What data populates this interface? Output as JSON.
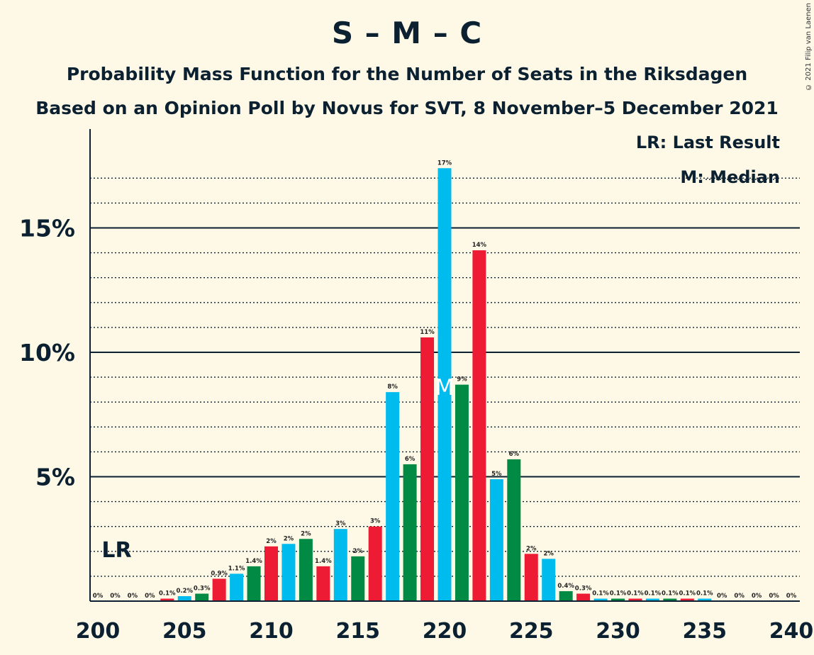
{
  "title": "S – M – C",
  "subtitle": "Probability Mass Function for the Number of Seats in the Riksdagen",
  "subtitle2": "Based on an Opinion Poll by Novus for SVT, 8 November–5 December 2021",
  "copyright": "© 2021 Filip van Laenen",
  "legend": {
    "last_result": "LR: Last Result",
    "median": "M: Median"
  },
  "markers": {
    "last_result_label": "LR",
    "last_result_seat": 201,
    "median_label": "M",
    "median_seat": 220
  },
  "colors": {
    "background": "#FEF9E6",
    "blue": "#00BBEE",
    "green": "#008A44",
    "red": "#ED1B34",
    "axis": "#0B2030"
  },
  "chart_data": {
    "type": "bar",
    "x": [
      200,
      201,
      202,
      203,
      204,
      205,
      206,
      207,
      208,
      209,
      210,
      211,
      212,
      213,
      214,
      215,
      216,
      217,
      218,
      219,
      220,
      221,
      222,
      223,
      224,
      225,
      226,
      227,
      228,
      229,
      230,
      231,
      232,
      233,
      234,
      235,
      236,
      237,
      238,
      239,
      240
    ],
    "values": [
      0,
      0,
      0,
      0,
      0.1,
      0.2,
      0.3,
      0.9,
      1.1,
      1.4,
      2.2,
      2.3,
      2.5,
      1.4,
      2.9,
      1.8,
      3.0,
      8.4,
      5.5,
      10.6,
      17.4,
      8.7,
      14.1,
      4.9,
      5.7,
      1.9,
      1.7,
      0.4,
      0.3,
      0.1,
      0.1,
      0.1,
      0.1,
      0.1,
      0.1,
      0.1,
      0,
      0,
      0,
      0,
      0
    ],
    "labels": [
      "0%",
      "0%",
      "0%",
      "0%",
      "0.1%",
      "0.2%",
      "0.3%",
      "0.9%",
      "1.1%",
      "1.4%",
      "2%",
      "2%",
      "2%",
      "1.4%",
      "3%",
      "2%",
      "3%",
      "8%",
      "6%",
      "11%",
      "17%",
      "9%",
      "14%",
      "5%",
      "6%",
      "2%",
      "2%",
      "0.4%",
      "0.3%",
      "0.1%",
      "0.1%",
      "0.1%",
      "0.1%",
      "0.1%",
      "0.1%",
      "0.1%",
      "0%",
      "0%",
      "0%",
      "0%",
      "0%"
    ],
    "bar_colors": [
      "blue",
      "green",
      "red",
      "blue",
      "red",
      "blue",
      "green",
      "red",
      "blue",
      "green",
      "red",
      "blue",
      "green",
      "red",
      "blue",
      "green",
      "red",
      "blue",
      "green",
      "red",
      "blue",
      "green",
      "red",
      "blue",
      "green",
      "red",
      "blue",
      "green",
      "red",
      "blue",
      "green",
      "red",
      "blue",
      "green",
      "red",
      "blue",
      "green",
      "red",
      "blue",
      "green",
      "red"
    ],
    "xticks": [
      200,
      205,
      210,
      215,
      220,
      225,
      230,
      235,
      240
    ],
    "xtick_labels": [
      "200",
      "205",
      "210",
      "215",
      "220",
      "225",
      "230",
      "235",
      "240"
    ],
    "yticks": [
      5,
      10,
      15
    ],
    "ytick_labels": [
      "5%",
      "10%",
      "15%"
    ],
    "ylim": [
      0,
      19
    ],
    "xlim": [
      200,
      240
    ],
    "grid": true
  }
}
